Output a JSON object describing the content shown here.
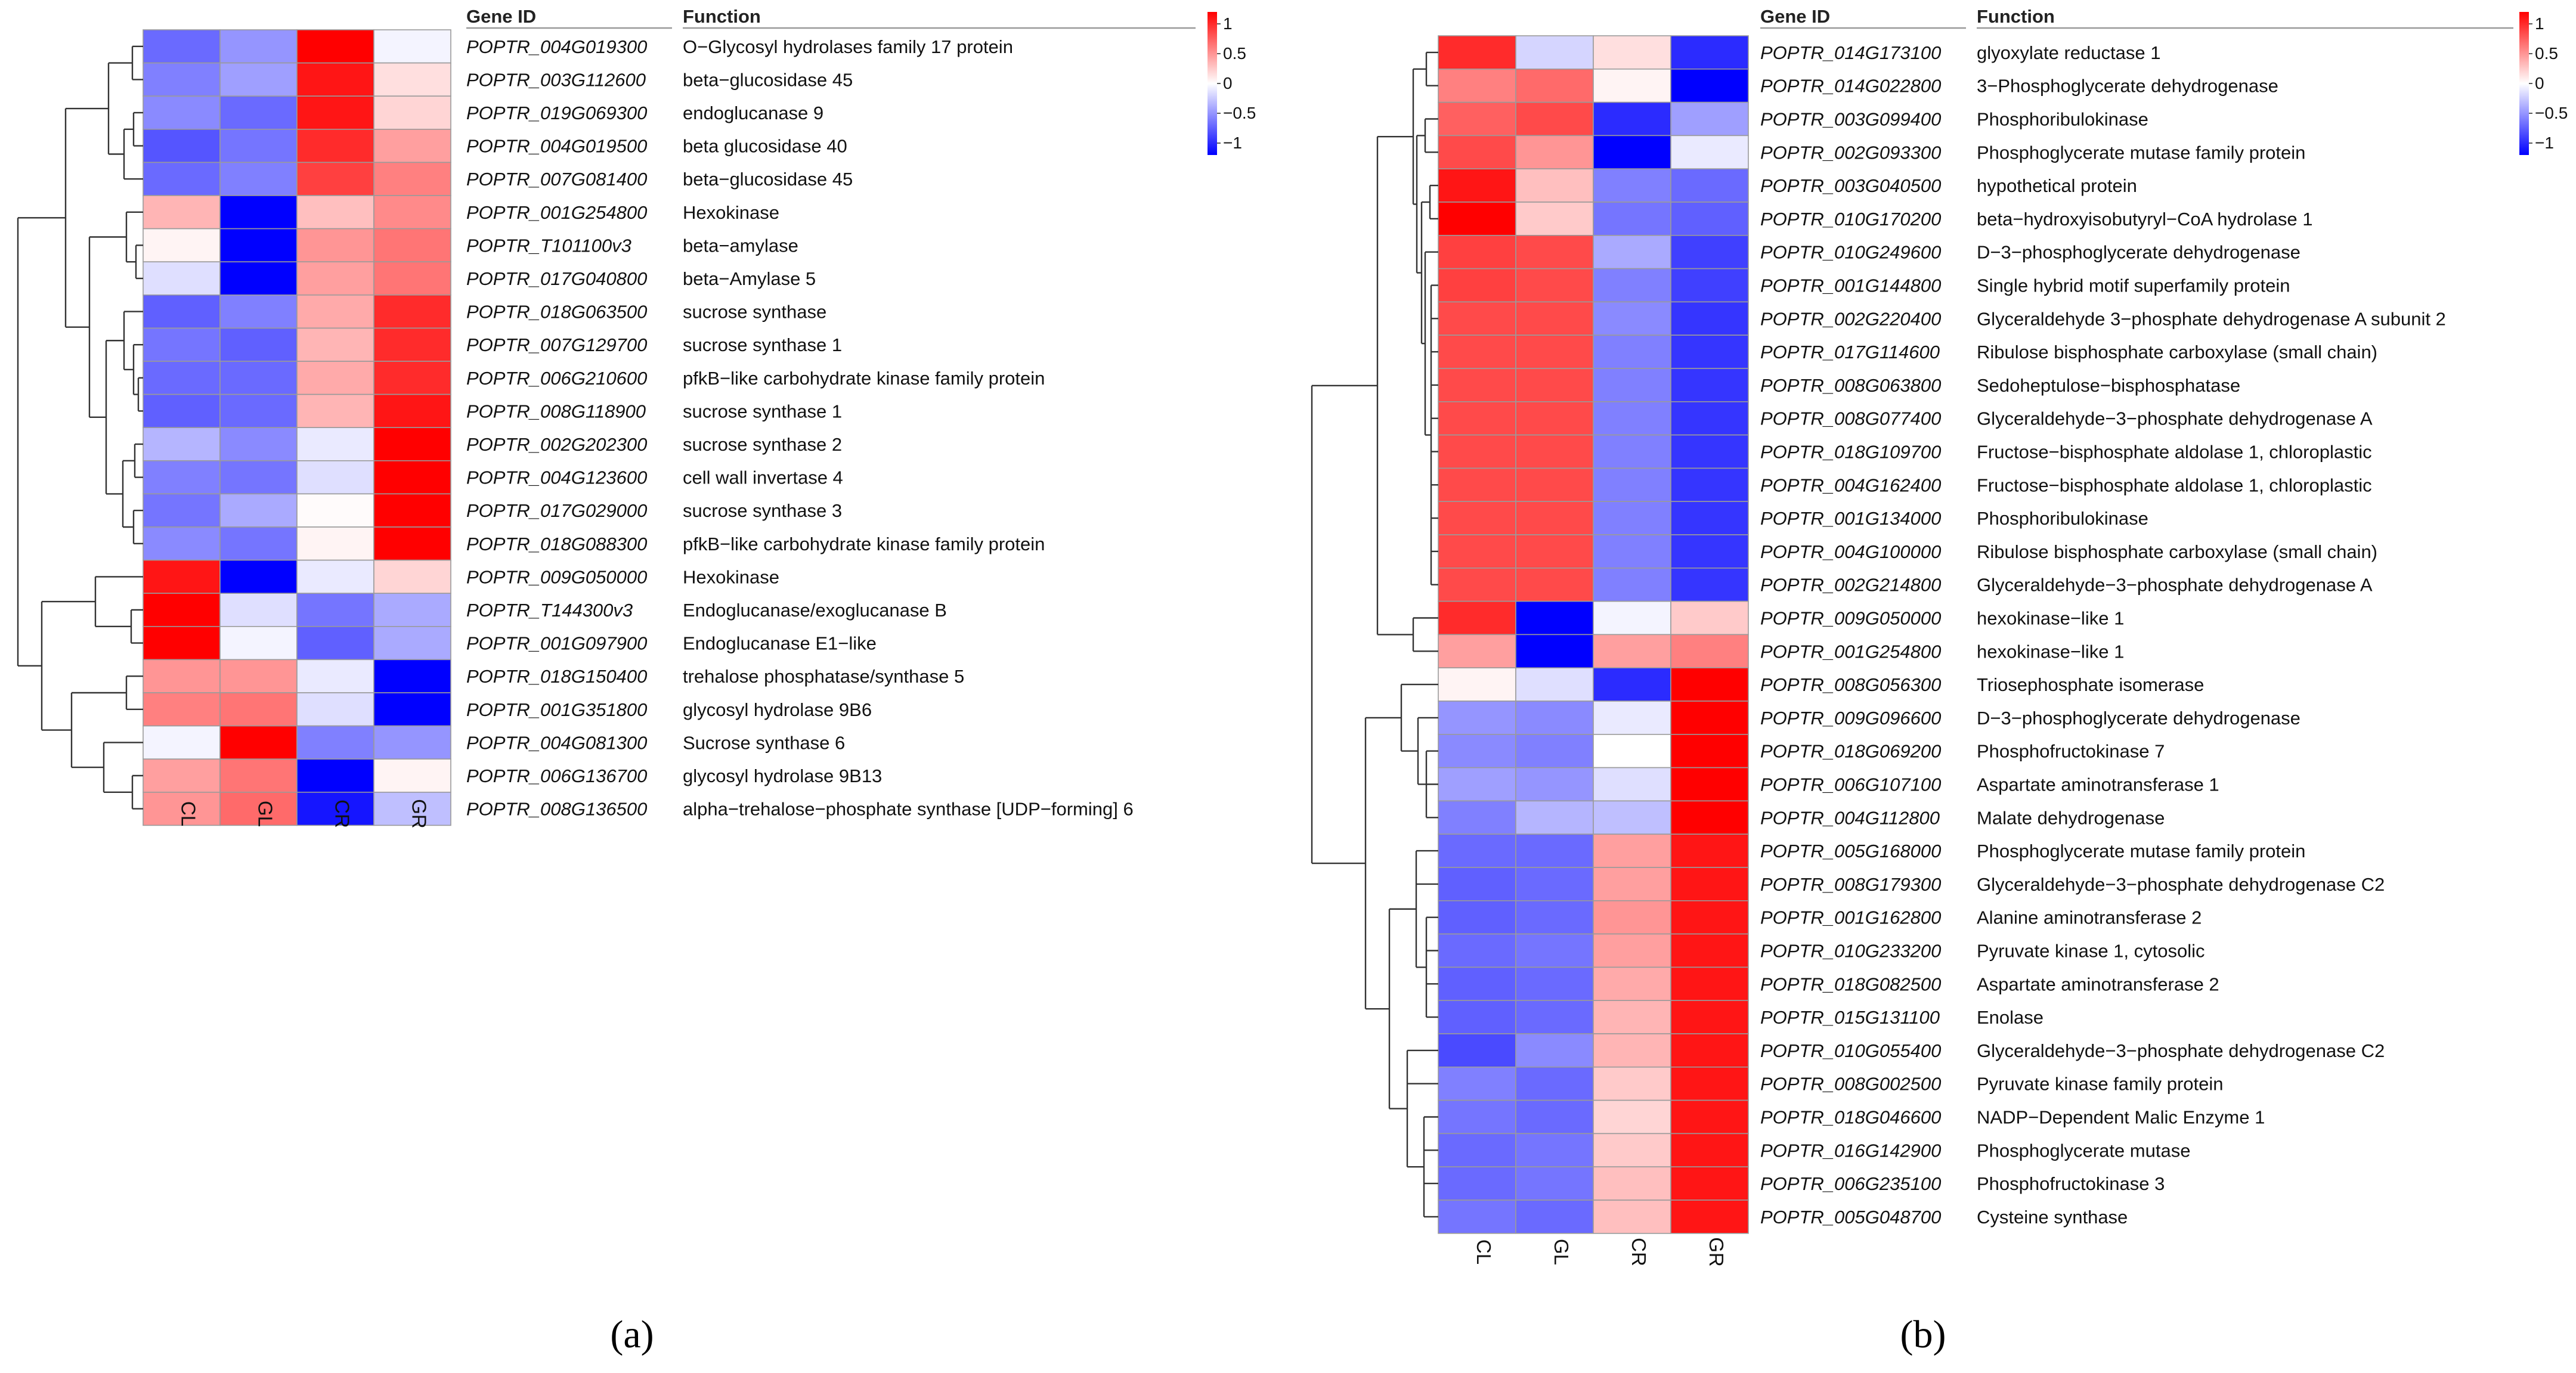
{
  "chart_data": [
    {
      "type": "heatmap",
      "panel_label": "(a)",
      "columns": [
        "CL",
        "GL",
        "CR",
        "GR"
      ],
      "header": {
        "gene_id": "Gene ID",
        "function": "Function"
      },
      "legend": {
        "ticks": [
          "1",
          "0.5",
          "0",
          "−0.5",
          "−1"
        ],
        "range": [
          -1.2,
          1.2
        ]
      },
      "rows": [
        {
          "id": "POPTR_004G019300",
          "function": "O−Glycosyl hydrolases family 17 protein",
          "values": [
            -0.7,
            -0.5,
            1.2,
            -0.05
          ]
        },
        {
          "id": "POPTR_003G112600",
          "function": "beta−glucosidase 45",
          "values": [
            -0.6,
            -0.45,
            1.1,
            0.15
          ]
        },
        {
          "id": "POPTR_019G069300",
          "function": "endoglucanase 9",
          "values": [
            -0.55,
            -0.7,
            1.1,
            0.2
          ]
        },
        {
          "id": "POPTR_004G019500",
          "function": "beta glucosidase 40",
          "values": [
            -0.8,
            -0.65,
            1.0,
            0.45
          ]
        },
        {
          "id": "POPTR_007G081400",
          "function": "beta−glucosidase 45",
          "values": [
            -0.7,
            -0.6,
            0.9,
            0.6
          ]
        },
        {
          "id": "POPTR_001G254800",
          "function": "Hexokinase",
          "values": [
            0.35,
            -1.2,
            0.3,
            0.55
          ]
        },
        {
          "id": "POPTR_T101100v3",
          "function": "beta−amylase",
          "values": [
            0.05,
            -1.2,
            0.5,
            0.65
          ]
        },
        {
          "id": "POPTR_017G040800",
          "function": "beta−Amylase 5",
          "values": [
            -0.15,
            -1.2,
            0.45,
            0.65
          ]
        },
        {
          "id": "POPTR_018G063500",
          "function": "sucrose synthase",
          "values": [
            -0.75,
            -0.6,
            0.4,
            1.0
          ]
        },
        {
          "id": "POPTR_007G129700",
          "function": "sucrose synthase 1",
          "values": [
            -0.65,
            -0.75,
            0.35,
            1.0
          ]
        },
        {
          "id": "POPTR_006G210600",
          "function": "pfkB−like carbohydrate kinase family protein",
          "values": [
            -0.7,
            -0.7,
            0.4,
            1.0
          ]
        },
        {
          "id": "POPTR_008G118900",
          "function": "sucrose synthase 1",
          "values": [
            -0.75,
            -0.7,
            0.35,
            1.1
          ]
        },
        {
          "id": "POPTR_002G202300",
          "function": "sucrose synthase 2",
          "values": [
            -0.35,
            -0.55,
            -0.1,
            1.2
          ]
        },
        {
          "id": "POPTR_004G123600",
          "function": "cell wall invertase 4",
          "values": [
            -0.6,
            -0.65,
            -0.15,
            1.2
          ]
        },
        {
          "id": "POPTR_017G029000",
          "function": "sucrose synthase 3",
          "values": [
            -0.65,
            -0.4,
            0.02,
            1.2
          ]
        },
        {
          "id": "POPTR_018G088300",
          "function": "pfkB−like carbohydrate kinase family protein",
          "values": [
            -0.55,
            -0.65,
            0.05,
            1.2
          ]
        },
        {
          "id": "POPTR_009G050000",
          "function": "Hexokinase",
          "values": [
            1.1,
            -1.2,
            -0.1,
            0.2
          ]
        },
        {
          "id": "POPTR_T144300v3",
          "function": "Endoglucanase/exoglucanase B",
          "values": [
            1.2,
            -0.15,
            -0.65,
            -0.4
          ]
        },
        {
          "id": "POPTR_001G097900",
          "function": "Endoglucanase E1−like",
          "values": [
            1.2,
            -0.05,
            -0.75,
            -0.4
          ]
        },
        {
          "id": "POPTR_018G150400",
          "function": "trehalose phosphatase/synthase 5",
          "values": [
            0.5,
            0.5,
            -0.1,
            -1.2
          ]
        },
        {
          "id": "POPTR_001G351800",
          "function": "glycosyl hydrolase 9B6",
          "values": [
            0.6,
            0.65,
            -0.15,
            -1.2
          ]
        },
        {
          "id": "POPTR_004G081300",
          "function": "Sucrose synthase 6",
          "values": [
            -0.05,
            1.2,
            -0.6,
            -0.5
          ]
        },
        {
          "id": "POPTR_006G136700",
          "function": "glycosyl hydrolase 9B13",
          "values": [
            0.45,
            0.65,
            -1.2,
            0.05
          ]
        },
        {
          "id": "POPTR_008G136500",
          "function": "alpha−trehalose−phosphate synthase [UDP−forming] 6",
          "values": [
            0.5,
            0.7,
            -1.1,
            -0.3
          ]
        }
      ]
    },
    {
      "type": "heatmap",
      "panel_label": "(b)",
      "columns": [
        "CL",
        "GL",
        "CR",
        "GR"
      ],
      "header": {
        "gene_id": "Gene ID",
        "function": "Function"
      },
      "legend": {
        "ticks": [
          "1",
          "0.5",
          "0",
          "−0.5",
          "−1"
        ],
        "range": [
          -1.2,
          1.2
        ]
      },
      "rows": [
        {
          "id": "POPTR_014G173100",
          "function": "glyoxylate reductase 1",
          "values": [
            1.0,
            -0.2,
            0.15,
            -1.0
          ]
        },
        {
          "id": "POPTR_014G022800",
          "function": "3−Phosphoglycerate dehydrogenase",
          "values": [
            0.6,
            0.7,
            0.05,
            -1.2
          ]
        },
        {
          "id": "POPTR_003G099400",
          "function": "Phosphoribulokinase",
          "values": [
            0.75,
            0.85,
            -1.0,
            -0.45
          ]
        },
        {
          "id": "POPTR_002G093300",
          "function": "Phosphoglycerate mutase family protein",
          "values": [
            0.85,
            0.5,
            -1.2,
            -0.1
          ]
        },
        {
          "id": "POPTR_003G040500",
          "function": "hypothetical protein",
          "values": [
            1.1,
            0.3,
            -0.6,
            -0.7
          ]
        },
        {
          "id": "POPTR_010G170200",
          "function": "beta−hydroxyisobutyryl−CoA hydrolase 1",
          "values": [
            1.2,
            0.25,
            -0.65,
            -0.75
          ]
        },
        {
          "id": "POPTR_010G249600",
          "function": "D−3−phosphoglycerate dehydrogenase",
          "values": [
            0.9,
            0.85,
            -0.4,
            -0.9
          ]
        },
        {
          "id": "POPTR_001G144800",
          "function": "Single hybrid motif superfamily protein",
          "values": [
            0.9,
            0.85,
            -0.6,
            -0.9
          ]
        },
        {
          "id": "POPTR_002G220400",
          "function": "Glyceraldehyde 3−phosphate dehydrogenase A subunit 2",
          "values": [
            0.85,
            0.85,
            -0.55,
            -0.95
          ]
        },
        {
          "id": "POPTR_017G114600",
          "function": "Ribulose bisphosphate carboxylase (small chain)",
          "values": [
            0.85,
            0.85,
            -0.6,
            -0.95
          ]
        },
        {
          "id": "POPTR_008G063800",
          "function": "Sedoheptulose−bisphosphatase",
          "values": [
            0.85,
            0.85,
            -0.6,
            -0.95
          ]
        },
        {
          "id": "POPTR_008G077400",
          "function": "Glyceraldehyde−3−phosphate dehydrogenase A",
          "values": [
            0.85,
            0.85,
            -0.6,
            -0.95
          ]
        },
        {
          "id": "POPTR_018G109700",
          "function": "Fructose−bisphosphate aldolase 1, chloroplastic",
          "values": [
            0.85,
            0.85,
            -0.6,
            -0.95
          ]
        },
        {
          "id": "POPTR_004G162400",
          "function": "Fructose−bisphosphate aldolase 1, chloroplastic",
          "values": [
            0.85,
            0.85,
            -0.6,
            -0.95
          ]
        },
        {
          "id": "POPTR_001G134000",
          "function": "Phosphoribulokinase",
          "values": [
            0.85,
            0.85,
            -0.6,
            -0.95
          ]
        },
        {
          "id": "POPTR_004G100000",
          "function": "Ribulose bisphosphate carboxylase (small chain)",
          "values": [
            0.85,
            0.85,
            -0.6,
            -0.95
          ]
        },
        {
          "id": "POPTR_002G214800",
          "function": "Glyceraldehyde−3−phosphate dehydrogenase A",
          "values": [
            0.85,
            0.85,
            -0.6,
            -0.95
          ]
        },
        {
          "id": "POPTR_009G050000",
          "function": "hexokinase−like 1",
          "values": [
            1.0,
            -1.2,
            -0.05,
            0.25
          ]
        },
        {
          "id": "POPTR_001G254800",
          "function": "hexokinase−like 1",
          "values": [
            0.45,
            -1.2,
            0.45,
            0.6
          ]
        },
        {
          "id": "POPTR_008G056300",
          "function": "Triosephosphate isomerase",
          "values": [
            0.05,
            -0.15,
            -1.0,
            1.2
          ]
        },
        {
          "id": "POPTR_009G096600",
          "function": "D−3−phosphoglycerate dehydrogenase",
          "values": [
            -0.5,
            -0.55,
            -0.1,
            1.2
          ]
        },
        {
          "id": "POPTR_018G069200",
          "function": "Phosphofructokinase 7",
          "values": [
            -0.55,
            -0.6,
            0.0,
            1.2
          ]
        },
        {
          "id": "POPTR_006G107100",
          "function": "Aspartate aminotransferase 1",
          "values": [
            -0.45,
            -0.5,
            -0.15,
            1.2
          ]
        },
        {
          "id": "POPTR_004G112800",
          "function": "Malate dehydrogenase",
          "values": [
            -0.6,
            -0.35,
            -0.3,
            1.2
          ]
        },
        {
          "id": "POPTR_005G168000",
          "function": "Phosphoglycerate mutase family protein",
          "values": [
            -0.7,
            -0.7,
            0.45,
            1.1
          ]
        },
        {
          "id": "POPTR_008G179300",
          "function": "Glyceraldehyde−3−phosphate dehydrogenase C2",
          "values": [
            -0.75,
            -0.7,
            0.45,
            1.1
          ]
        },
        {
          "id": "POPTR_001G162800",
          "function": "Alanine aminotransferase 2",
          "values": [
            -0.75,
            -0.7,
            0.5,
            1.1
          ]
        },
        {
          "id": "POPTR_010G233200",
          "function": "Pyruvate kinase 1, cytosolic",
          "values": [
            -0.7,
            -0.65,
            0.45,
            1.1
          ]
        },
        {
          "id": "POPTR_018G082500",
          "function": "Aspartate aminotransferase 2",
          "values": [
            -0.75,
            -0.7,
            0.4,
            1.1
          ]
        },
        {
          "id": "POPTR_015G131100",
          "function": "Enolase",
          "values": [
            -0.75,
            -0.7,
            0.35,
            1.1
          ]
        },
        {
          "id": "POPTR_010G055400",
          "function": "Glyceraldehyde−3−phosphate dehydrogenase C2",
          "values": [
            -0.85,
            -0.55,
            0.35,
            1.1
          ]
        },
        {
          "id": "POPTR_008G002500",
          "function": "Pyruvate kinase family protein",
          "values": [
            -0.6,
            -0.7,
            0.25,
            1.1
          ]
        },
        {
          "id": "POPTR_018G046600",
          "function": "NADP−Dependent Malic Enzyme 1",
          "values": [
            -0.65,
            -0.7,
            0.2,
            1.1
          ]
        },
        {
          "id": "POPTR_016G142900",
          "function": "Phosphoglycerate mutase",
          "values": [
            -0.7,
            -0.65,
            0.25,
            1.1
          ]
        },
        {
          "id": "POPTR_006G235100",
          "function": "Phosphofructokinase 3",
          "values": [
            -0.7,
            -0.65,
            0.3,
            1.1
          ]
        },
        {
          "id": "POPTR_005G048700",
          "function": "Cysteine synthase",
          "values": [
            -0.65,
            -0.7,
            0.3,
            1.1
          ]
        }
      ]
    }
  ],
  "colors": {
    "high": "#ff0000",
    "mid": "#ffffff",
    "low": "#0000ff",
    "grid": "#9a9a9a",
    "dendrogram": "#333333"
  }
}
